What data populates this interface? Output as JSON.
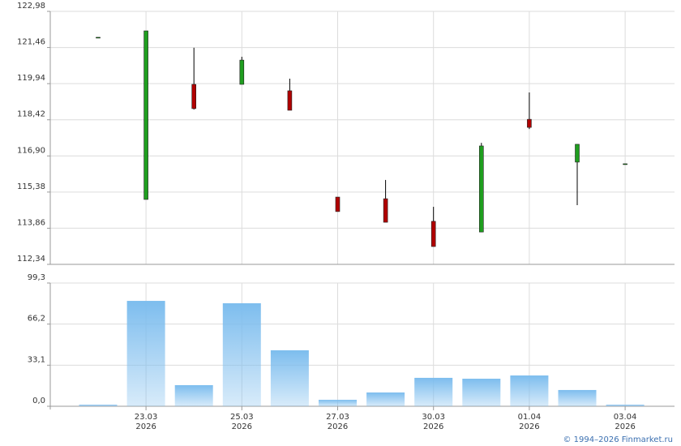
{
  "chart_data": [
    {
      "type": "candlestick",
      "open": [
        121.89,
        115.07,
        119.91,
        119.91,
        119.64,
        115.17,
        115.1,
        114.15,
        113.7,
        118.44,
        116.64,
        116.57
      ],
      "high": [
        121.89,
        122.16,
        121.45,
        121.07,
        120.15,
        115.17,
        115.89,
        114.76,
        117.45,
        119.57,
        117.39,
        116.57
      ],
      "low": [
        121.89,
        115.07,
        118.85,
        119.91,
        118.82,
        114.56,
        114.11,
        113.09,
        113.7,
        118.03,
        114.83,
        116.57
      ],
      "close": [
        121.89,
        122.16,
        118.89,
        120.93,
        118.82,
        114.56,
        114.11,
        113.09,
        117.32,
        118.1,
        117.39,
        116.57
      ],
      "up_color": "#1f9e1f",
      "down_color": "#b00000",
      "ylim": [
        112.34,
        122.98
      ],
      "yticks": [
        {
          "value": 112.34,
          "label": "112,34"
        },
        {
          "value": 113.86,
          "label": "113,86"
        },
        {
          "value": 115.38,
          "label": "115,38"
        },
        {
          "value": 116.9,
          "label": "116,90"
        },
        {
          "value": 118.42,
          "label": "118,42"
        },
        {
          "value": 119.94,
          "label": "119,94"
        },
        {
          "value": 121.46,
          "label": "121,46"
        },
        {
          "value": 122.98,
          "label": "122,98"
        }
      ],
      "grid": true
    },
    {
      "type": "bar",
      "categories": [
        null,
        "23.03",
        null,
        "25.03",
        null,
        "27.03",
        null,
        "30.03",
        null,
        "01.04",
        null,
        "03.04"
      ],
      "category_years": [
        null,
        "2026",
        null,
        "2026",
        null,
        "2026",
        null,
        "2026",
        null,
        "2026",
        null,
        "2026"
      ],
      "values": [
        1.3,
        84.9,
        17.0,
        83.0,
        45.1,
        5.2,
        11.1,
        22.9,
        22.2,
        24.8,
        13.1,
        1.3
      ],
      "color": "#7dbdee",
      "ylim": [
        0,
        99.3
      ],
      "yticks": [
        {
          "value": 0,
          "label": "0,0"
        },
        {
          "value": 33.1,
          "label": "33,1"
        },
        {
          "value": 66.2,
          "label": "66,2"
        },
        {
          "value": 99.3,
          "label": "99,3"
        }
      ],
      "grid": true
    }
  ],
  "footer": "© 1994–2026 Finmarket.ru"
}
